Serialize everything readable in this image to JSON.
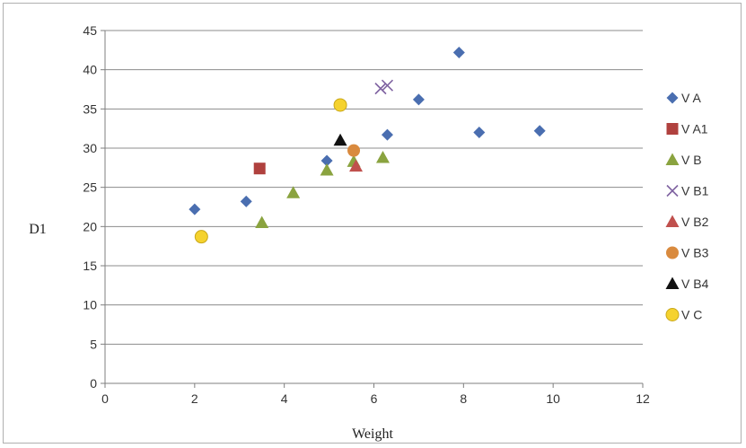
{
  "chart_data": {
    "type": "scatter",
    "title": "",
    "xlabel": "Weight",
    "ylabel": "D1",
    "xlim": [
      0,
      12
    ],
    "ylim": [
      0,
      45
    ],
    "xticks": [
      0,
      2,
      4,
      6,
      8,
      10,
      12
    ],
    "yticks": [
      0,
      5,
      10,
      15,
      20,
      25,
      30,
      35,
      40,
      45
    ],
    "grid": "horizontal",
    "legend_position": "right",
    "series": [
      {
        "name": "V A",
        "marker": "diamond",
        "color": "#4a6eb0",
        "points": [
          [
            2.0,
            22.2
          ],
          [
            3.15,
            23.2
          ],
          [
            4.95,
            28.4
          ],
          [
            6.3,
            31.7
          ],
          [
            7.0,
            36.2
          ],
          [
            7.9,
            42.2
          ],
          [
            8.35,
            32.0
          ],
          [
            9.7,
            32.2
          ]
        ]
      },
      {
        "name": "V A1",
        "marker": "square",
        "color": "#b0413e",
        "points": [
          [
            3.45,
            27.4
          ]
        ]
      },
      {
        "name": "V B",
        "marker": "triangle",
        "color": "#8aa33f",
        "points": [
          [
            3.5,
            20.5
          ],
          [
            4.2,
            24.3
          ],
          [
            4.95,
            27.2
          ],
          [
            5.55,
            28.3
          ],
          [
            6.2,
            28.8
          ]
        ]
      },
      {
        "name": "V B1",
        "marker": "x",
        "color": "#8064a2",
        "points": [
          [
            6.15,
            37.6
          ],
          [
            6.3,
            38.0
          ]
        ]
      },
      {
        "name": "V B2",
        "marker": "triangle",
        "color": "#c0504d",
        "points": [
          [
            5.6,
            27.7
          ]
        ]
      },
      {
        "name": "V B3",
        "marker": "circle",
        "color": "#d98a3e",
        "points": [
          [
            5.55,
            29.7
          ]
        ]
      },
      {
        "name": "V B4",
        "marker": "triangle",
        "color": "#111111",
        "points": [
          [
            5.25,
            31.0
          ]
        ]
      },
      {
        "name": "V C",
        "marker": "circle-outline",
        "color": "#f5d22e",
        "points": [
          [
            2.15,
            18.7
          ],
          [
            5.25,
            35.5
          ]
        ]
      }
    ]
  }
}
